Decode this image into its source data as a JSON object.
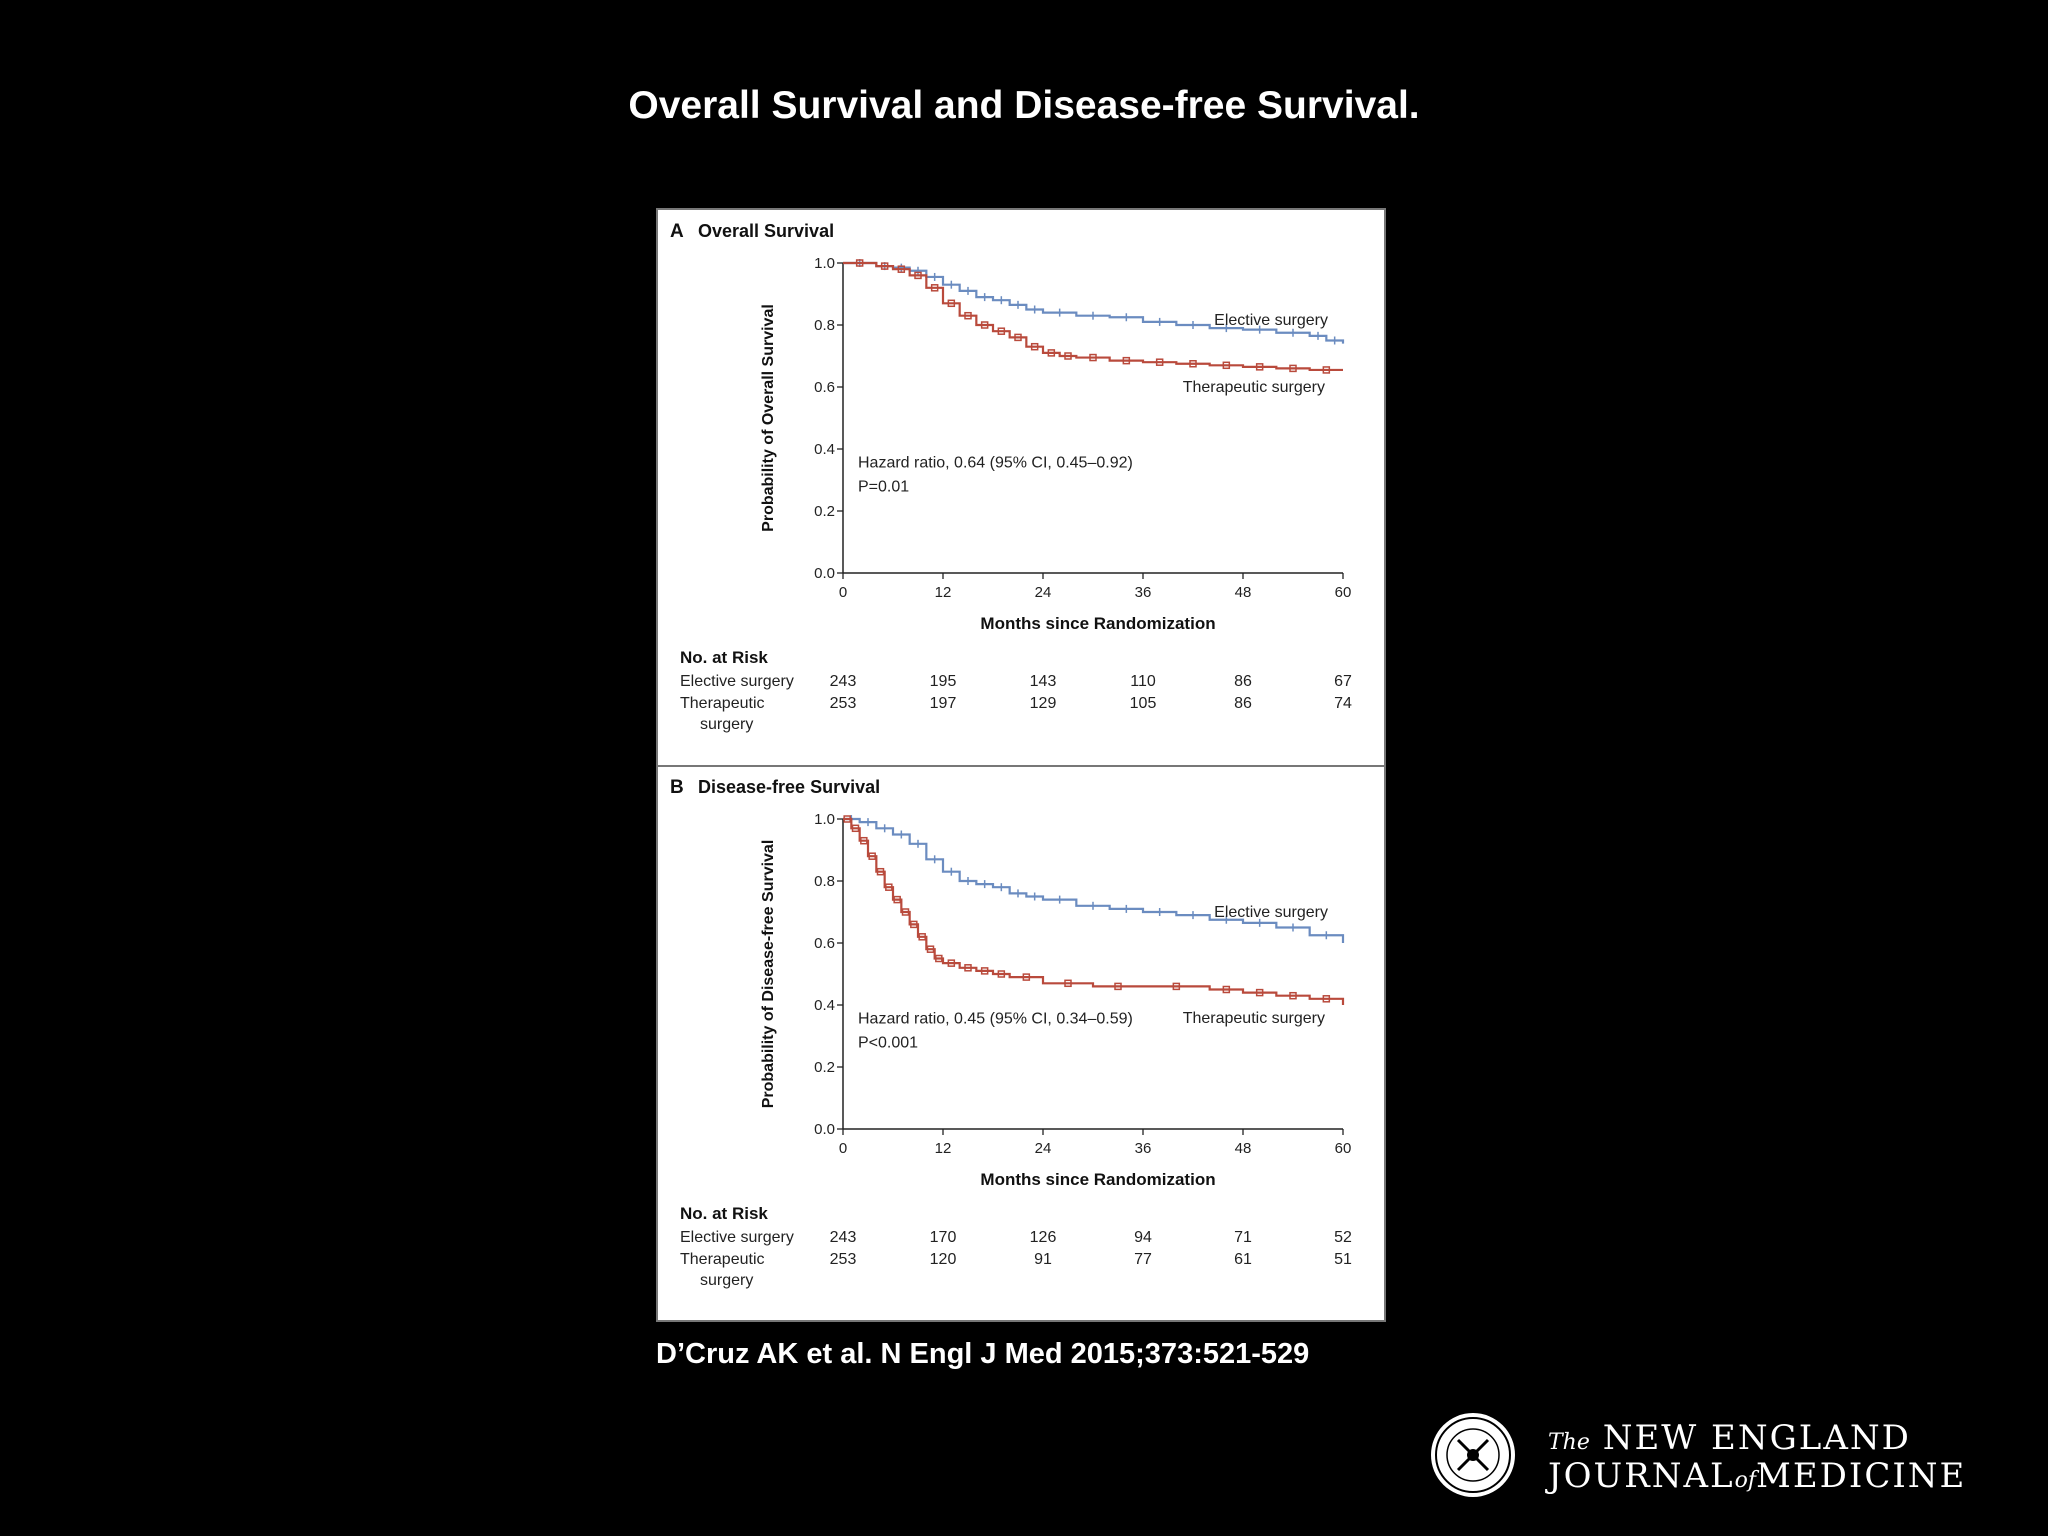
{
  "slide": {
    "title": "Overall Survival and Disease-free Survival.",
    "citation": "D’Cruz AK et al. N Engl J Med 2015;373:521-529"
  },
  "logo": {
    "the": "The",
    "line1": "NEW ENGLAND",
    "line2a": "JOURNAL",
    "of": "of",
    "line2b": "MEDICINE"
  },
  "colors": {
    "elective": "#6b8cc0",
    "therapeutic": "#b94a3c",
    "axis": "#222222"
  },
  "chart_data": [
    {
      "type": "line",
      "panel": "A",
      "title": "Overall Survival",
      "xlabel": "Months since Randomization",
      "ylabel": "Probability of Overall  Survival",
      "xlim": [
        0,
        60
      ],
      "ylim": [
        0,
        1
      ],
      "xticks": [
        "0",
        "12",
        "24",
        "36",
        "48",
        "60"
      ],
      "yticks": [
        "0.0",
        "0.2",
        "0.4",
        "0.6",
        "0.8",
        "1.0"
      ],
      "annotation": [
        "Hazard ratio, 0.64 (95% CI, 0.45–0.92)",
        "P=0.01"
      ],
      "series": [
        {
          "name": "Elective surgery",
          "x": [
            0,
            4,
            6,
            8,
            10,
            12,
            14,
            16,
            18,
            20,
            22,
            24,
            28,
            32,
            36,
            40,
            44,
            48,
            52,
            56,
            58,
            60
          ],
          "y": [
            1.0,
            0.99,
            0.985,
            0.975,
            0.955,
            0.93,
            0.91,
            0.89,
            0.88,
            0.865,
            0.85,
            0.84,
            0.83,
            0.825,
            0.81,
            0.8,
            0.79,
            0.785,
            0.775,
            0.765,
            0.75,
            0.74
          ]
        },
        {
          "name": "Therapeutic surgery",
          "x": [
            0,
            4,
            6,
            8,
            10,
            12,
            14,
            16,
            18,
            20,
            22,
            24,
            26,
            28,
            32,
            36,
            40,
            44,
            48,
            52,
            56,
            60
          ],
          "y": [
            1.0,
            0.99,
            0.98,
            0.96,
            0.92,
            0.87,
            0.83,
            0.8,
            0.78,
            0.76,
            0.73,
            0.71,
            0.7,
            0.695,
            0.685,
            0.68,
            0.675,
            0.67,
            0.665,
            0.66,
            0.655,
            0.655
          ]
        }
      ],
      "risk": {
        "header": "No. at Risk",
        "rows": [
          {
            "label": [
              "Elective surgery"
            ],
            "values": [
              "243",
              "195",
              "143",
              "110",
              "86",
              "67"
            ]
          },
          {
            "label": [
              "Therapeutic",
              "surgery"
            ],
            "values": [
              "253",
              "197",
              "129",
              "105",
              "86",
              "74"
            ]
          }
        ]
      }
    },
    {
      "type": "line",
      "panel": "B",
      "title": "Disease-free Survival",
      "xlabel": "Months since Randomization",
      "ylabel": "Probability of Disease-free Survival",
      "xlim": [
        0,
        60
      ],
      "ylim": [
        0,
        1
      ],
      "xticks": [
        "0",
        "12",
        "24",
        "36",
        "48",
        "60"
      ],
      "yticks": [
        "0.0",
        "0.2",
        "0.4",
        "0.6",
        "0.8",
        "1.0"
      ],
      "annotation": [
        "Hazard ratio, 0.45 (95% CI, 0.34–0.59)",
        "P<0.001"
      ],
      "series": [
        {
          "name": "Elective surgery",
          "x": [
            0,
            2,
            4,
            6,
            8,
            10,
            12,
            14,
            16,
            18,
            20,
            22,
            24,
            28,
            32,
            36,
            40,
            44,
            48,
            52,
            56,
            60
          ],
          "y": [
            1.0,
            0.99,
            0.97,
            0.95,
            0.92,
            0.87,
            0.83,
            0.8,
            0.79,
            0.78,
            0.76,
            0.75,
            0.74,
            0.72,
            0.71,
            0.7,
            0.69,
            0.675,
            0.665,
            0.65,
            0.625,
            0.6
          ]
        },
        {
          "name": "Therapeutic surgery",
          "x": [
            0,
            1,
            2,
            3,
            4,
            5,
            6,
            7,
            8,
            9,
            10,
            11,
            12,
            14,
            16,
            18,
            20,
            24,
            30,
            36,
            44,
            48,
            52,
            56,
            60
          ],
          "y": [
            1.0,
            0.97,
            0.93,
            0.88,
            0.83,
            0.78,
            0.74,
            0.7,
            0.66,
            0.62,
            0.58,
            0.55,
            0.535,
            0.52,
            0.51,
            0.5,
            0.49,
            0.47,
            0.46,
            0.46,
            0.45,
            0.44,
            0.43,
            0.42,
            0.4
          ]
        }
      ],
      "risk": {
        "header": "No. at Risk",
        "rows": [
          {
            "label": [
              "Elective surgery"
            ],
            "values": [
              "243",
              "170",
              "126",
              "94",
              "71",
              "52"
            ]
          },
          {
            "label": [
              "Therapeutic",
              "surgery"
            ],
            "values": [
              "253",
              "120",
              "91",
              "77",
              "61",
              "51"
            ]
          }
        ]
      }
    }
  ]
}
